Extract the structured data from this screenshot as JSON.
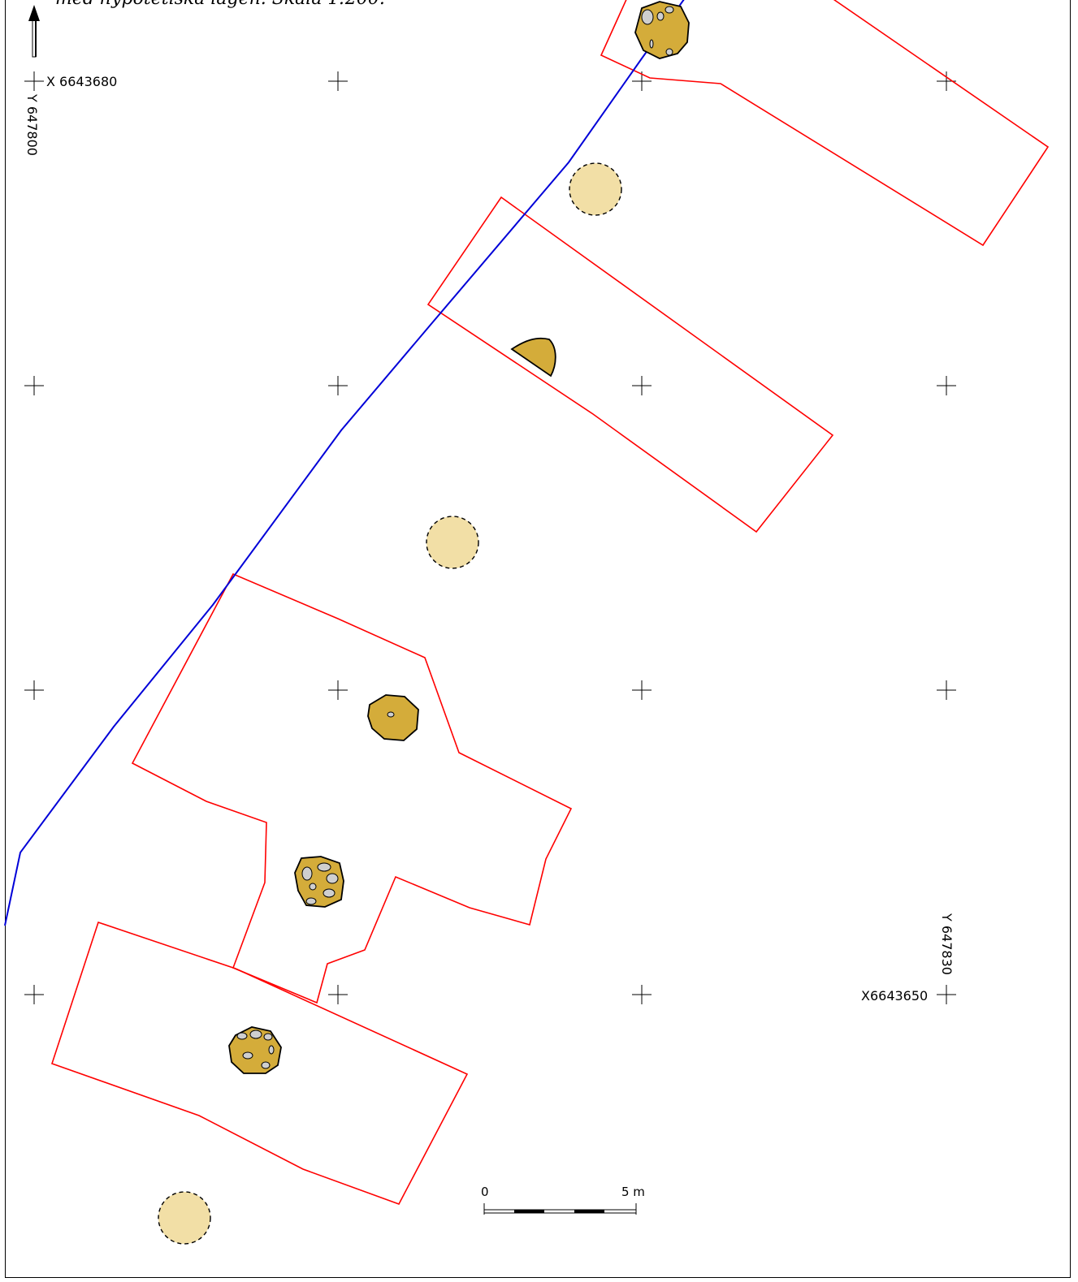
{
  "caption": "med hypotetiska lägen. Skala 1:200.",
  "north_arrow": {
    "icon": "north-arrow-icon"
  },
  "coordinates": {
    "x_top": "X 6643680",
    "y_top": "Y 647800",
    "x_bottom": "X6643650",
    "y_bottom": "Y 647830"
  },
  "scale_bar": {
    "label_start": "0",
    "label_end": "5 m"
  },
  "colors": {
    "trench_outline": "#ff0000",
    "boundary_line": "#0000d8",
    "feature_fill": "#d4ac3a",
    "hypothetical_fill": "#f2dfa6",
    "stone_fill": "#cfcfcf"
  },
  "legend_symbols": {
    "trench": "excavation-trench",
    "boundary": "boundary-line",
    "posthole": "posthole-feature",
    "hypothetical": "hypothetical-posthole"
  }
}
